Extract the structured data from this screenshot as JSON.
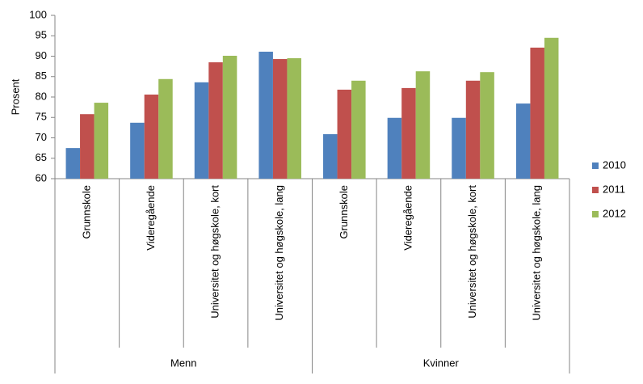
{
  "chart_data": {
    "type": "bar",
    "y_label": "Prosent",
    "groups": [
      "Menn",
      "Kvinner"
    ],
    "categories": [
      "Grunnskole",
      "Videregående",
      "Universitet og høgskole, kort",
      "Universitet og høgskole, lang",
      "Grunnskole",
      "Videregående",
      "Universitet og høgskole, kort",
      "Universitet og høgskole, lang"
    ],
    "series": [
      {
        "name": "2010",
        "color": "#4f81bd",
        "values": [
          67.5,
          73.7,
          83.6,
          91.1,
          70.9,
          74.9,
          74.9,
          78.4
        ]
      },
      {
        "name": "2011",
        "color": "#c0504d",
        "values": [
          75.8,
          80.6,
          88.5,
          89.3,
          81.8,
          82.2,
          84.0,
          92.1
        ]
      },
      {
        "name": "2012",
        "color": "#9bbb59",
        "values": [
          78.6,
          84.4,
          90.1,
          89.5,
          84.0,
          86.3,
          86.1,
          94.5
        ]
      }
    ],
    "ylim": [
      60,
      100
    ],
    "yticks": [
      60,
      65,
      70,
      75,
      80,
      85,
      90,
      95,
      100
    ],
    "grid": false,
    "legend": "right"
  }
}
